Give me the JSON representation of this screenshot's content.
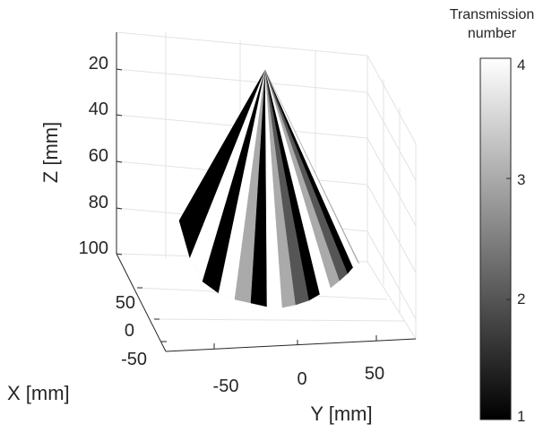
{
  "chart_data": {
    "type": "surface3d",
    "xlabel": "X [mm]",
    "ylabel": "Y [mm]",
    "zlabel": "Z [mm]",
    "x_ticks": [
      "50",
      "0",
      "-50"
    ],
    "y_ticks": [
      "-50",
      "0",
      "50"
    ],
    "z_ticks": [
      "20",
      "40",
      "60",
      "80",
      "100"
    ],
    "z_direction": "reversed",
    "grid": true,
    "colormap": "gray",
    "colorbar": {
      "title_line1": "Transmission",
      "title_line2": "number",
      "ticks": [
        "1",
        "2",
        "3",
        "4"
      ],
      "range": [
        1,
        4
      ],
      "placement": "right"
    },
    "surface": {
      "shape": "cone",
      "apex_z": 0,
      "base_z": 100,
      "num_sectors": 20,
      "sector_transmission_numbers": [
        1,
        4,
        1,
        4,
        3,
        1,
        4,
        3,
        2,
        1,
        4,
        3,
        2,
        1,
        4,
        3,
        1,
        4,
        3,
        1
      ]
    }
  }
}
